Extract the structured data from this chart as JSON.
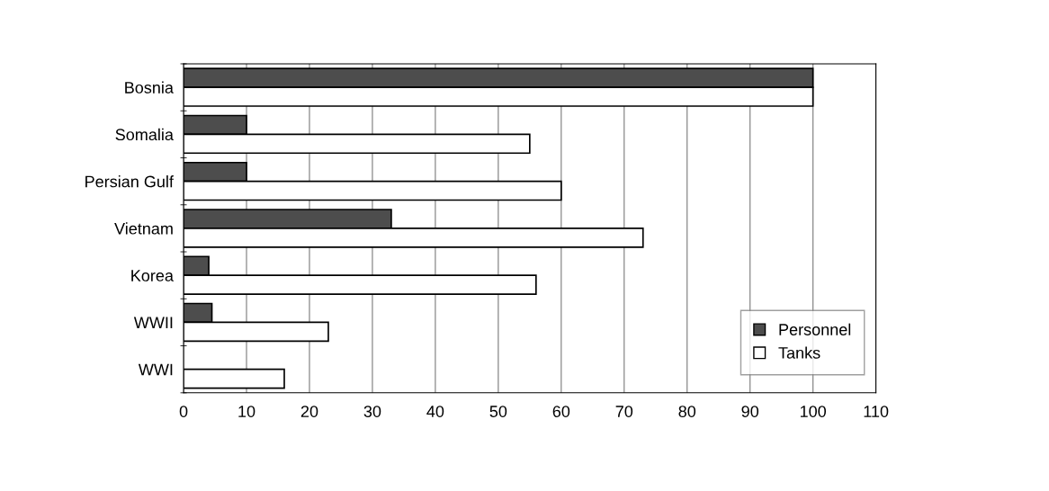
{
  "chart_data": {
    "type": "bar",
    "orientation": "horizontal",
    "categories": [
      "Bosnia",
      "Somalia",
      "Persian Gulf",
      "Vietnam",
      "Korea",
      "WWII",
      "WWI"
    ],
    "series": [
      {
        "name": "Personnel",
        "color": "#4d4d4d",
        "values": [
          100,
          10,
          10,
          33,
          4,
          4.5,
          null
        ]
      },
      {
        "name": "Tanks",
        "color": "#ffffff",
        "values": [
          100,
          55,
          60,
          73,
          56,
          23,
          16
        ]
      }
    ],
    "xlim": [
      0,
      110
    ],
    "xticks": [
      0,
      10,
      20,
      30,
      40,
      50,
      60,
      70,
      80,
      90,
      100,
      110
    ],
    "grid": "x",
    "legend": "bottom right"
  }
}
